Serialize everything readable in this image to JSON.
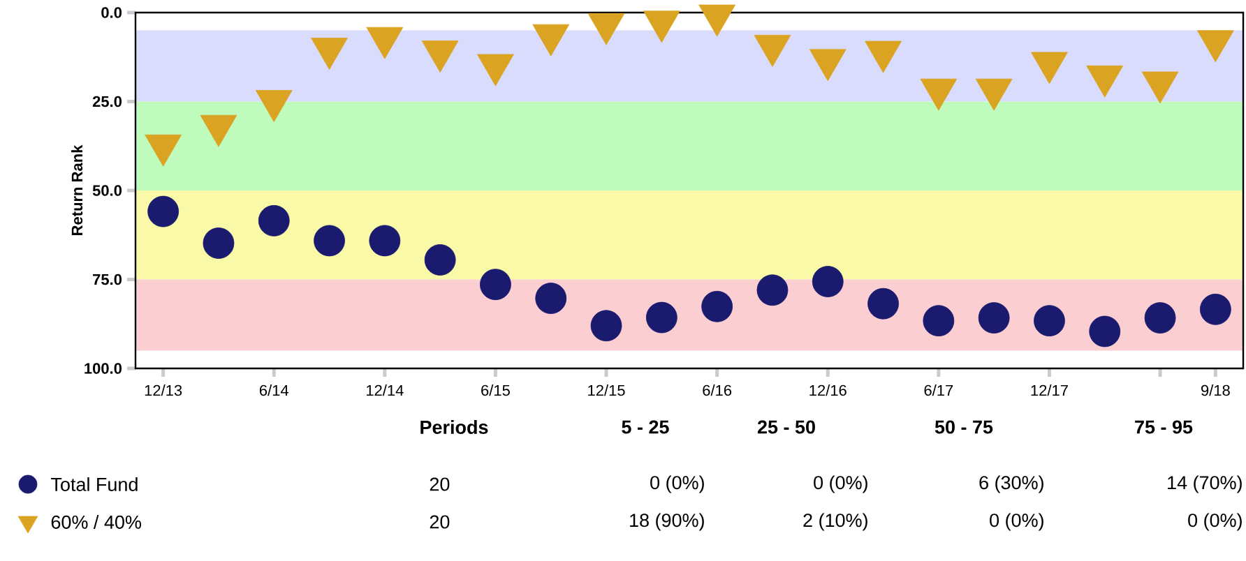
{
  "chart_data": {
    "type": "scatter",
    "ylabel": "Return Rank",
    "categories": [
      "12/13",
      null,
      "6/14",
      null,
      "12/14",
      null,
      "6/15",
      null,
      "12/15",
      null,
      "6/16",
      null,
      "12/16",
      null,
      "6/17",
      null,
      "12/17",
      null,
      null,
      "9/18"
    ],
    "ylim": [
      100,
      0
    ],
    "yticks": [
      {
        "value": 0,
        "label": "0.0"
      },
      {
        "value": 25,
        "label": "25.0"
      },
      {
        "value": 50,
        "label": "50.0"
      },
      {
        "value": 75,
        "label": "75.0"
      },
      {
        "value": 100,
        "label": "100.0"
      }
    ],
    "bands": [
      {
        "axis": "y",
        "from": 5,
        "to": 25,
        "color": "#d9dcfc"
      },
      {
        "axis": "y",
        "from": 25,
        "to": 50,
        "color": "#c0fbbe"
      },
      {
        "axis": "y",
        "from": 50,
        "to": 75,
        "color": "#f9f9a8"
      },
      {
        "axis": "y",
        "from": 75,
        "to": 95,
        "color": "#fbcfd2"
      }
    ],
    "series": [
      {
        "name": "Total Fund",
        "color": "#1a1a6e",
        "marker": "circle",
        "values": [
          55.9,
          64.8,
          58.5,
          64.1,
          64.1,
          69.5,
          76.4,
          80.3,
          88,
          85.7,
          82.6,
          78,
          75.6,
          81.8,
          86.6,
          85.8,
          86.6,
          89.6,
          85.8,
          83.4
        ]
      },
      {
        "name": "60% / 40%",
        "color": "#dba322",
        "marker": "triangle",
        "values": [
          37.3,
          31.8,
          24.8,
          10.1,
          7.1,
          10.9,
          14.7,
          6.3,
          3.2,
          2.5,
          0.8,
          9.3,
          13.3,
          11,
          21.6,
          21.6,
          14.1,
          17.9,
          19.6,
          8
        ]
      }
    ],
    "legend": "bottom",
    "grid": false,
    "annotations": [
      "Periods",
      "5 - 25",
      "25 - 50",
      "50 - 75",
      "75 - 95",
      "20",
      "0 (0%)",
      "0 (0%)",
      "6 (30%)",
      "14 (70%)",
      "20",
      "18 (90%)",
      "2 (10%)",
      "0 (0%)",
      "0 (0%)"
    ]
  }
}
